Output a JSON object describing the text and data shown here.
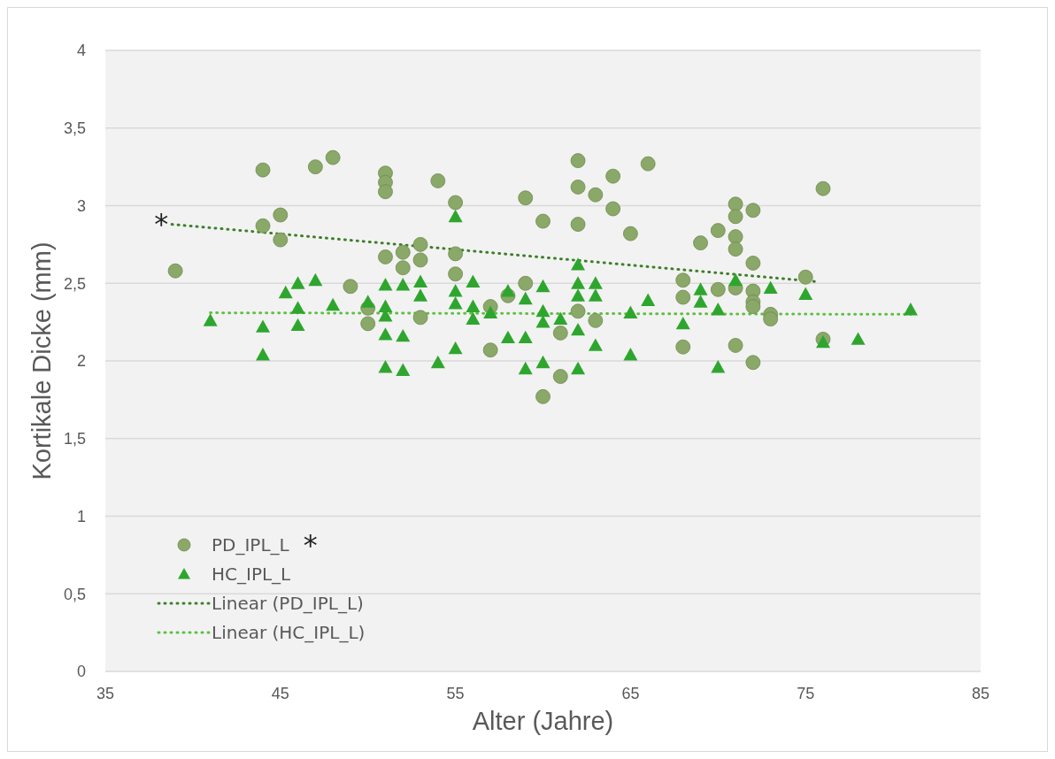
{
  "chart_data": {
    "type": "scatter",
    "xlabel": "Alter (Jahre)",
    "ylabel": "Kortikale Dicke (mm)",
    "xlim": [
      35,
      85
    ],
    "xticks": [
      35,
      45,
      55,
      65,
      75,
      85
    ],
    "ylim": [
      0,
      4
    ],
    "yticks": [
      0,
      {
        "value": 0.5,
        "label": "0,5"
      },
      1,
      {
        "value": 1.5,
        "label": "1,5"
      },
      2,
      {
        "value": 2.5,
        "label": "2,5"
      },
      3,
      {
        "value": 3.5,
        "label": "3,5"
      },
      4
    ],
    "grid": "y",
    "legend": "bottom left",
    "annotations": [
      "*",
      "*"
    ],
    "series": [
      {
        "name": "PD_IPL_L",
        "marker": "circle",
        "color": "#8aa868",
        "x": [
          39,
          44,
          44,
          45,
          45,
          47,
          48,
          49,
          50,
          50,
          51,
          51,
          51,
          51,
          52,
          52,
          53,
          53,
          53,
          54,
          55,
          55,
          55,
          57,
          57,
          58,
          59,
          59,
          60,
          60,
          61,
          61,
          62,
          62,
          62,
          62,
          63,
          63,
          64,
          64,
          65,
          66,
          68,
          68,
          68,
          69,
          70,
          70,
          71,
          71,
          71,
          71,
          71,
          71,
          72,
          72,
          72,
          72,
          72,
          72,
          73,
          73,
          75,
          76,
          76
        ],
        "values": [
          2.58,
          3.23,
          2.87,
          2.94,
          2.78,
          3.25,
          3.31,
          2.48,
          2.34,
          2.24,
          3.21,
          3.15,
          3.09,
          2.67,
          2.7,
          2.6,
          2.75,
          2.65,
          2.28,
          3.16,
          3.02,
          2.69,
          2.56,
          2.35,
          2.07,
          2.42,
          3.05,
          2.5,
          2.9,
          1.77,
          2.18,
          1.9,
          3.29,
          3.12,
          2.88,
          2.32,
          3.07,
          2.26,
          3.19,
          2.98,
          2.82,
          3.27,
          2.52,
          2.41,
          2.09,
          2.76,
          2.84,
          2.46,
          3.01,
          2.93,
          2.8,
          2.72,
          2.47,
          2.1,
          2.97,
          2.63,
          2.45,
          2.38,
          2.35,
          1.99,
          2.3,
          2.27,
          2.54,
          3.11,
          2.14
        ]
      },
      {
        "name": "HC_IPL_L",
        "marker": "triangle",
        "color": "#2ea62e",
        "x": [
          41,
          44,
          44,
          45.3,
          46,
          46,
          46,
          47,
          48,
          50,
          51,
          51,
          51,
          51,
          51,
          52,
          52,
          52,
          53,
          53,
          54,
          55,
          55,
          55,
          55,
          56,
          56,
          56,
          57,
          58,
          58,
          59,
          59,
          59,
          60,
          60,
          60,
          60,
          61,
          62,
          62,
          62,
          62,
          62,
          63,
          63,
          63,
          65,
          65,
          66,
          68,
          69,
          69,
          70,
          70,
          71,
          73,
          75,
          76,
          78,
          81
        ],
        "values": [
          2.26,
          2.22,
          2.04,
          2.44,
          2.5,
          2.34,
          2.23,
          2.52,
          2.36,
          2.38,
          2.49,
          2.35,
          2.29,
          2.17,
          1.96,
          2.49,
          2.16,
          1.94,
          2.51,
          2.42,
          1.99,
          2.93,
          2.45,
          2.37,
          2.08,
          2.51,
          2.35,
          2.27,
          2.31,
          2.45,
          2.15,
          2.4,
          2.15,
          1.95,
          2.48,
          2.32,
          2.25,
          1.99,
          2.27,
          2.62,
          2.5,
          2.42,
          2.2,
          1.95,
          2.5,
          2.42,
          2.1,
          2.31,
          2.04,
          2.39,
          2.24,
          2.46,
          2.38,
          2.33,
          1.96,
          2.52,
          2.47,
          2.43,
          2.12,
          2.14,
          2.33
        ]
      },
      {
        "name": "Linear (PD_IPL_L)",
        "type": "line",
        "line_style": "dotted",
        "color": "#3f7f2a",
        "x": [
          38.8,
          75.7
        ],
        "values": [
          2.88,
          2.51
        ]
      },
      {
        "name": "Linear (HC_IPL_L)",
        "type": "line",
        "line_style": "dotted",
        "color": "#5cc040",
        "x": [
          41,
          81
        ],
        "values": [
          2.31,
          2.3
        ]
      }
    ]
  }
}
